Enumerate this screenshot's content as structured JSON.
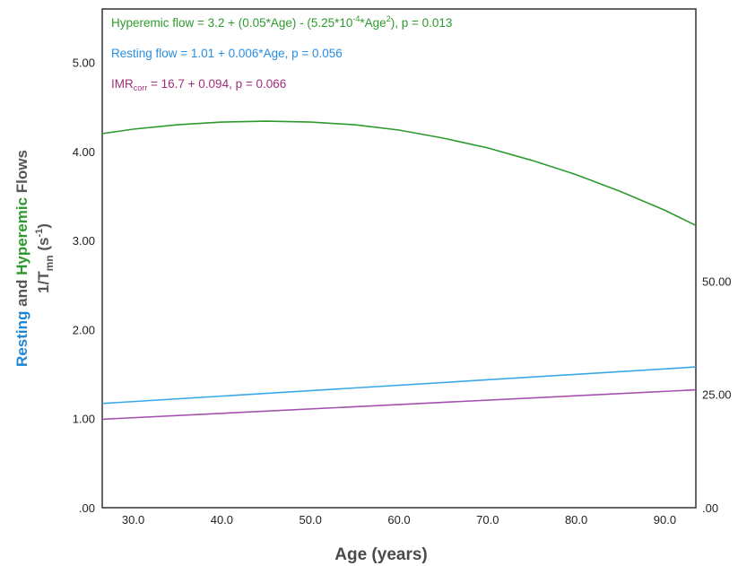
{
  "chart_data": {
    "type": "line",
    "xlabel": "Age (years)",
    "ylabel": {
      "part_resting": "Resting",
      "part_and": "and",
      "part_hyperemic": "Hyperemic",
      "part_flows": "Flows",
      "line2_main": "1/T",
      "line2_sub": "mn",
      "line2_unit_open": "(s",
      "line2_unit_sup": "-1",
      "line2_unit_close": ")"
    },
    "xlim": [
      26.5,
      93.5
    ],
    "ylim": [
      0,
      5.6
    ],
    "y2lim": [
      0,
      110
    ],
    "x_ticks": [
      "30.0",
      "40.0",
      "50.0",
      "60.0",
      "70.0",
      "80.0",
      "90.0"
    ],
    "x_tick_values": [
      30,
      40,
      50,
      60,
      70,
      80,
      90
    ],
    "y_ticks": [
      ".00",
      "1.00",
      "2.00",
      "3.00",
      "4.00",
      "5.00"
    ],
    "y_tick_values": [
      0,
      1,
      2,
      3,
      4,
      5
    ],
    "y2_ticks": [
      ".00",
      "25.00",
      "50.00"
    ],
    "y2_tick_values": [
      0,
      25,
      50
    ],
    "grid": false,
    "series": [
      {
        "name": "Hyperemic flow",
        "color": "#2e9a2e",
        "axis": "left",
        "x": [
          26.5,
          30,
          35,
          40,
          45,
          50,
          55,
          60,
          65,
          70,
          75,
          80,
          85,
          90,
          93.5
        ],
        "values": [
          4.2,
          4.25,
          4.3,
          4.33,
          4.34,
          4.33,
          4.3,
          4.24,
          4.15,
          4.04,
          3.9,
          3.74,
          3.55,
          3.34,
          3.17
        ]
      },
      {
        "name": "Resting flow",
        "color": "#3aa8e8",
        "axis": "left",
        "x": [
          26.5,
          93.5
        ],
        "values": [
          1.17,
          1.58
        ]
      },
      {
        "name": "IMRcorr",
        "color": "#a44fb0",
        "axis": "right",
        "x": [
          26.5,
          93.5
        ],
        "values": [
          19.5,
          26.0
        ]
      }
    ],
    "annotations": [
      {
        "color": "#2e9a2e",
        "parts": [
          {
            "t": "Hyperemic flow = 3.2 + (0.05*Age) - (5.25*10",
            "s": "n"
          },
          {
            "t": "-4",
            "s": "sup"
          },
          {
            "t": "*Age",
            "s": "n"
          },
          {
            "t": "2",
            "s": "sup"
          },
          {
            "t": "), p = 0.013",
            "s": "n"
          }
        ]
      },
      {
        "color": "#2a8ee0",
        "parts": [
          {
            "t": "Resting flow = 1.01 + 0.006*Age, p = 0.056",
            "s": "n"
          }
        ]
      },
      {
        "color": "#a0307a",
        "parts": [
          {
            "t": "IMR",
            "s": "n"
          },
          {
            "t": "corr",
            "s": "sub"
          },
          {
            "t": " = 16.7 + 0.094, p = 0.066",
            "s": "n"
          }
        ]
      }
    ],
    "colors": {
      "resting_label": "#1f86d6",
      "hyperemic_label": "#2e9a2e",
      "neutral_label": "#555555",
      "frame": "#333333"
    }
  }
}
